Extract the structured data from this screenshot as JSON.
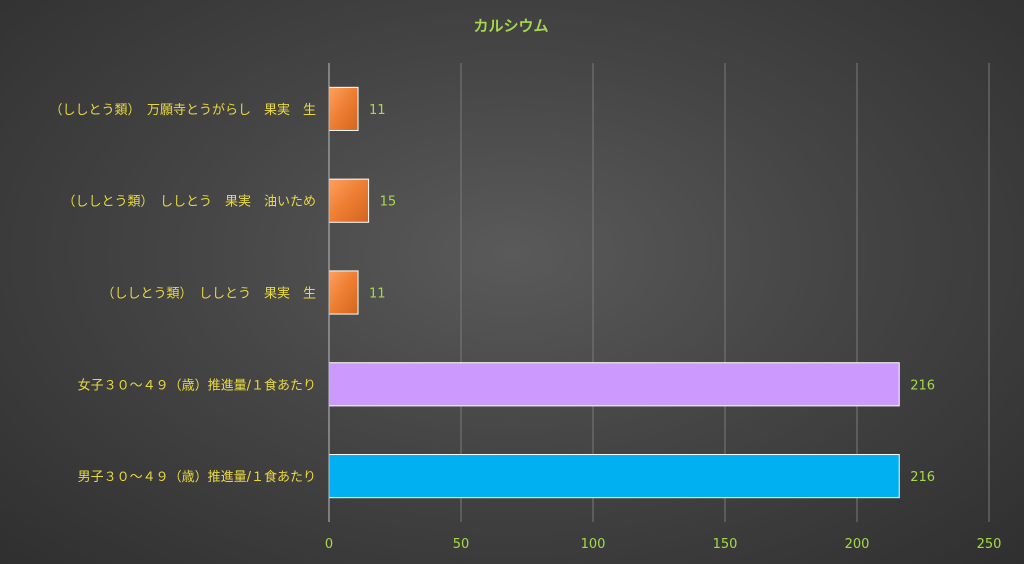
{
  "chart_data": {
    "type": "bar",
    "orientation": "horizontal",
    "title": "カルシウム",
    "xlabel": "",
    "ylabel": "",
    "xlim": [
      0,
      250
    ],
    "x_ticks": [
      0,
      50,
      100,
      150,
      200,
      250
    ],
    "grid": "vertical",
    "categories": [
      "（ししとう類）　万願寺とうがらし　果実　生",
      "（ししとう類）　ししとう　果実　油いため",
      "（ししとう類）　ししとう　果実　生",
      "女子３０～４９（歳）推進量/１食あたり",
      "男子３０～４９（歳）推進量/１食あたり"
    ],
    "values": [
      11,
      15,
      11,
      216,
      216
    ],
    "bar_colors": [
      "#ed7d31",
      "#ed7d31",
      "#ed7d31",
      "#cc99ff",
      "#00b0f0"
    ],
    "data_labels": [
      "11",
      "15",
      "11",
      "216",
      "216"
    ]
  }
}
